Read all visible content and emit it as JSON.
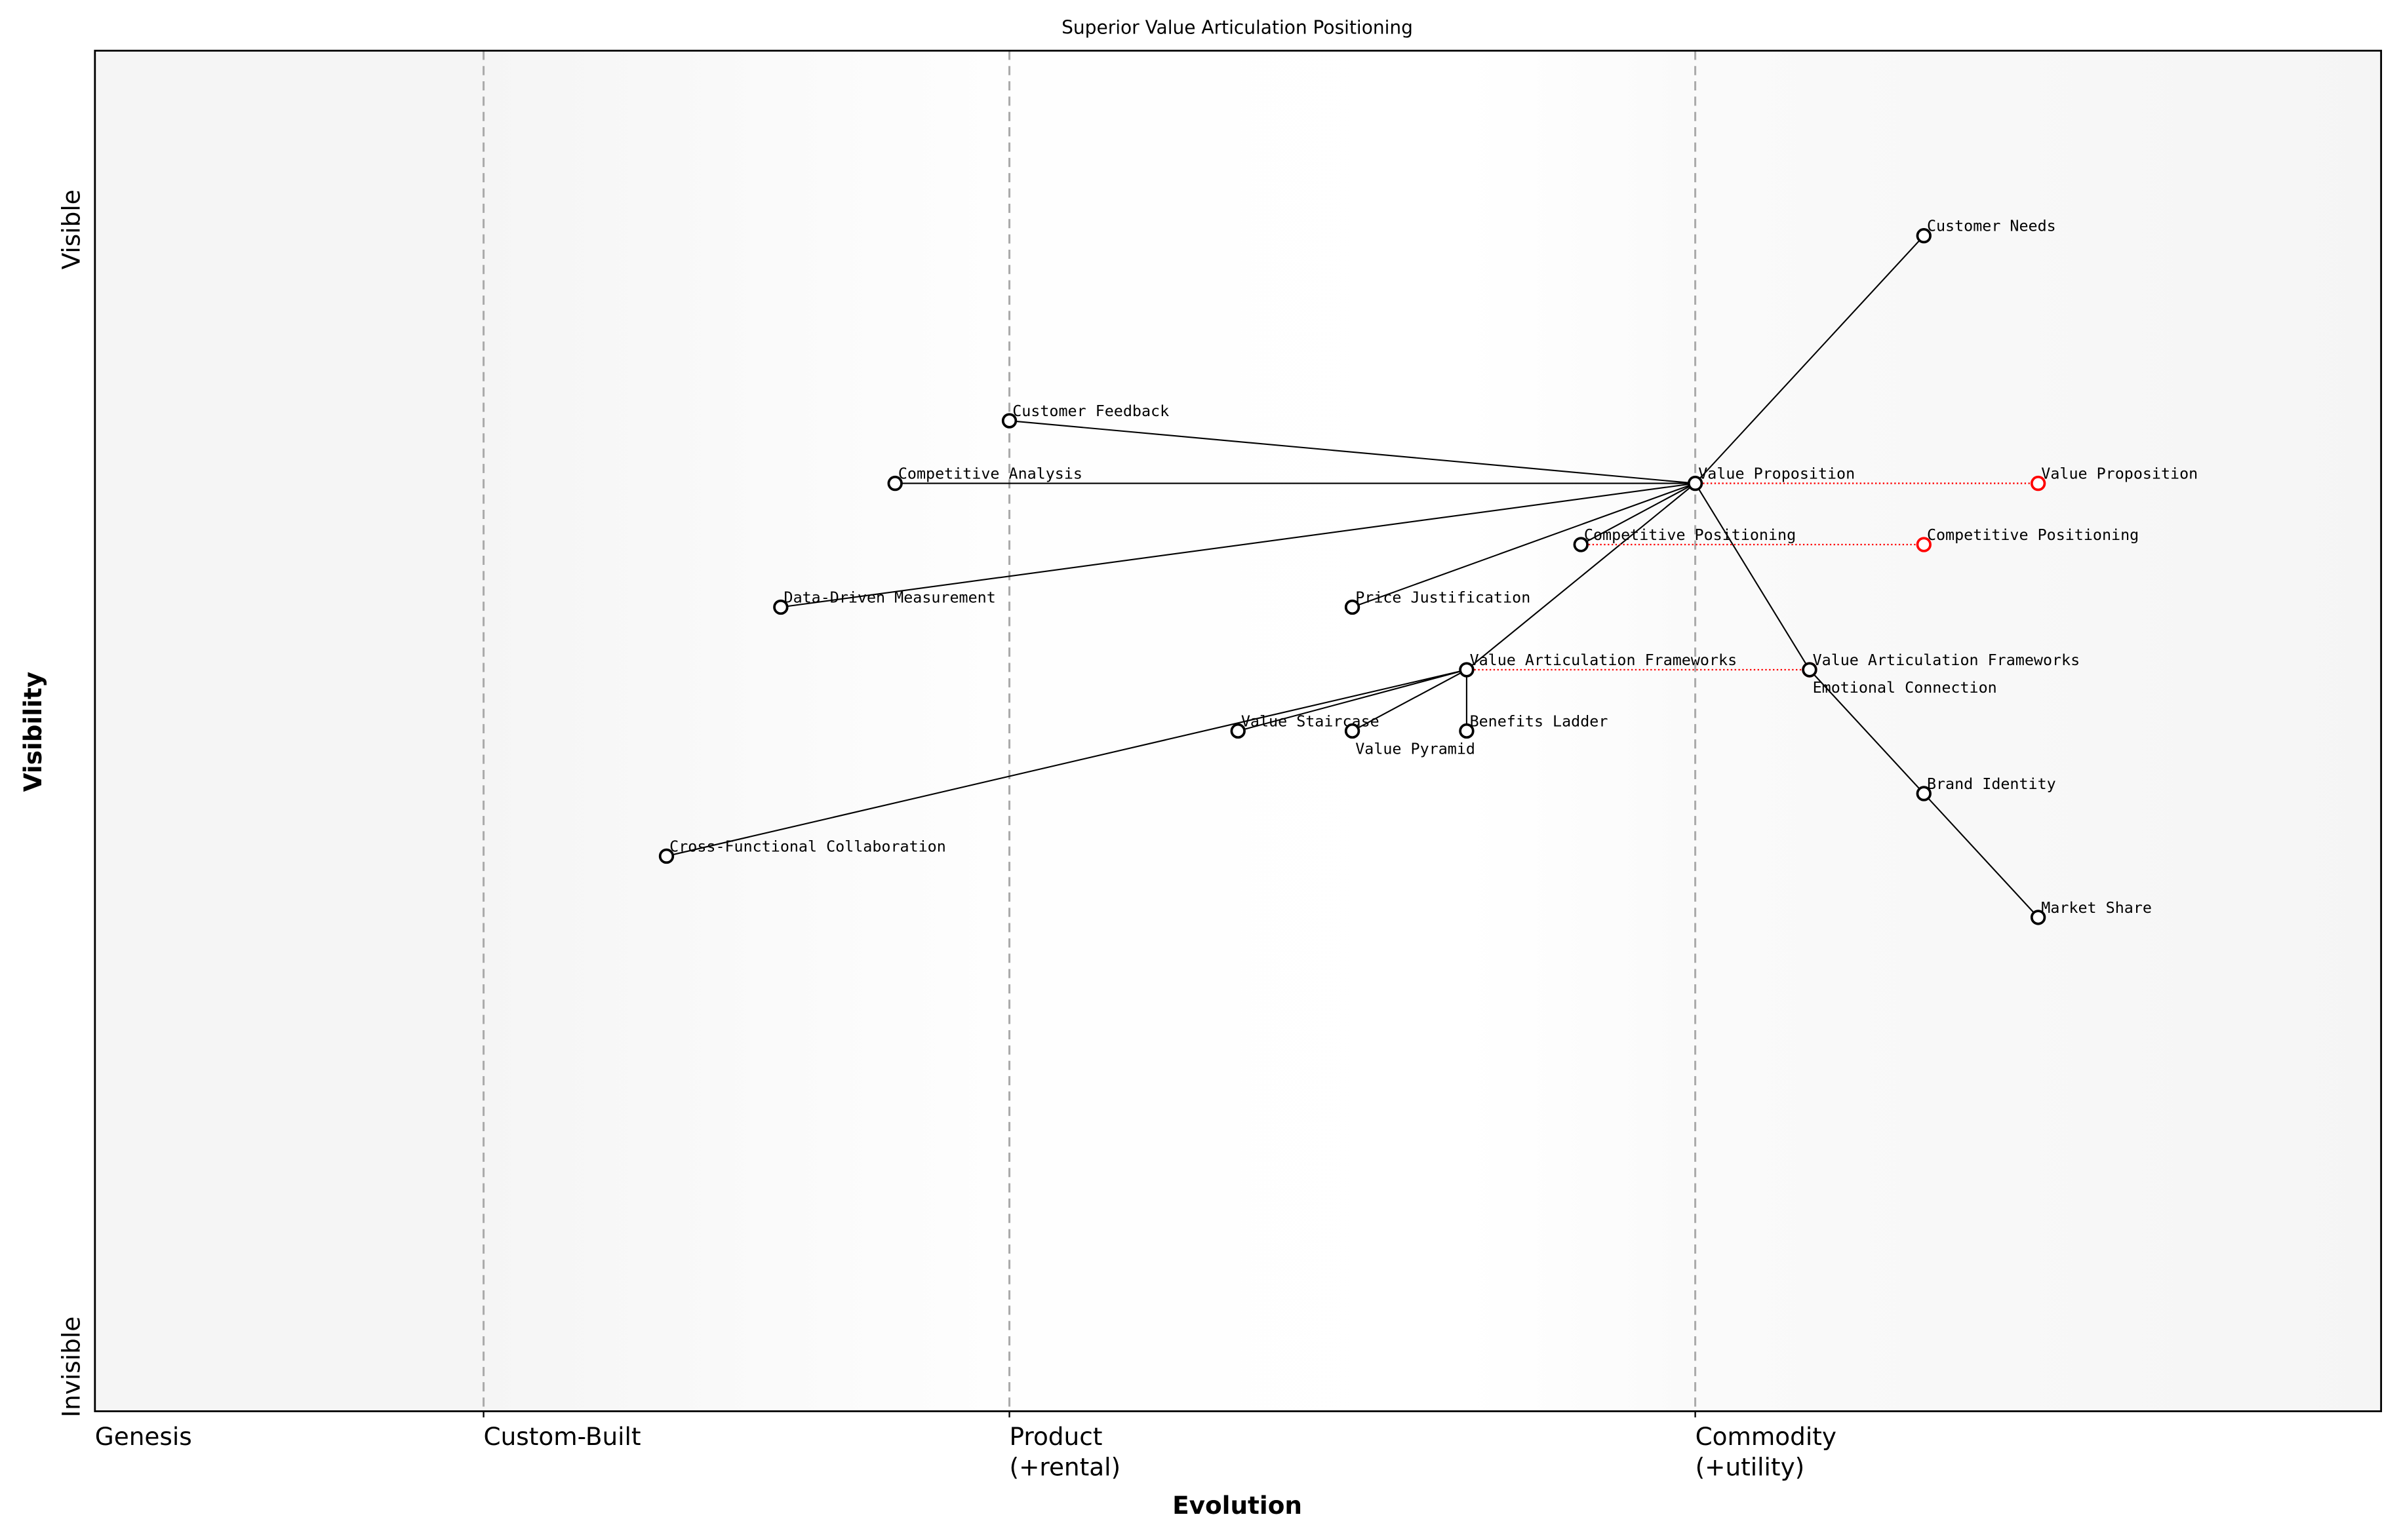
{
  "title": "Superior Value Articulation Positioning",
  "x_axis": {
    "label": "Evolution",
    "stages": [
      {
        "label": [
          "Genesis"
        ],
        "at": 0
      },
      {
        "label": [
          "Custom-Built"
        ],
        "at": 0.17
      },
      {
        "label": [
          "Product",
          "(+rental)"
        ],
        "at": 0.4
      },
      {
        "label": [
          "Commodity",
          "(+utility)"
        ],
        "at": 0.7
      }
    ]
  },
  "y_axis": {
    "label": "Visibility",
    "top": "Visible",
    "bottom": "Invisible"
  },
  "colors": {
    "node": "#000000",
    "evolved": "#ff0000",
    "stage_line": "#aaaaaa",
    "edge_band": "#f5f5f5"
  },
  "components": [
    {
      "name": "Customer Needs",
      "evolution": 0.8,
      "visibility": 0.864
    },
    {
      "name": "Value Proposition",
      "evolution": 0.7,
      "visibility": 0.682
    },
    {
      "name": "Customer Feedback",
      "evolution": 0.4,
      "visibility": 0.728
    },
    {
      "name": "Competitive Analysis",
      "evolution": 0.35,
      "visibility": 0.682
    },
    {
      "name": "Competitive Positioning",
      "evolution": 0.65,
      "visibility": 0.637
    },
    {
      "name": "Data-Driven Measurement",
      "evolution": 0.3,
      "visibility": 0.591
    },
    {
      "name": "Price Justification",
      "evolution": 0.55,
      "visibility": 0.591
    },
    {
      "name": "Value Articulation Frameworks",
      "evolution": 0.6,
      "visibility": 0.545
    },
    {
      "name": "Emotional Connection",
      "evolution": 0.75,
      "visibility": 0.545
    },
    {
      "name": "Value Staircase",
      "evolution": 0.5,
      "visibility": 0.5
    },
    {
      "name": "Value Pyramid",
      "evolution": 0.55,
      "visibility": 0.5
    },
    {
      "name": "Benefits Ladder",
      "evolution": 0.6,
      "visibility": 0.5
    },
    {
      "name": "Brand Identity",
      "evolution": 0.8,
      "visibility": 0.454
    },
    {
      "name": "Cross-Functional Collaboration",
      "evolution": 0.25,
      "visibility": 0.408
    },
    {
      "name": "Market Share",
      "evolution": 0.85,
      "visibility": 0.363
    }
  ],
  "links": [
    [
      "Customer Needs",
      "Value Proposition"
    ],
    [
      "Value Proposition",
      "Customer Feedback"
    ],
    [
      "Value Proposition",
      "Competitive Analysis"
    ],
    [
      "Value Proposition",
      "Data-Driven Measurement"
    ],
    [
      "Value Proposition",
      "Competitive Positioning"
    ],
    [
      "Value Proposition",
      "Price Justification"
    ],
    [
      "Value Proposition",
      "Value Articulation Frameworks"
    ],
    [
      "Value Proposition",
      "Emotional Connection"
    ],
    [
      "Emotional Connection",
      "Brand Identity"
    ],
    [
      "Brand Identity",
      "Market Share"
    ],
    [
      "Value Articulation Frameworks",
      "Value Staircase"
    ],
    [
      "Value Articulation Frameworks",
      "Value Pyramid"
    ],
    [
      "Value Articulation Frameworks",
      "Benefits Ladder"
    ],
    [
      "Value Articulation Frameworks",
      "Cross-Functional Collaboration"
    ]
  ],
  "evolutions": [
    {
      "name": "Value Proposition",
      "to": 0.85
    },
    {
      "name": "Competitive Positioning",
      "to": 0.8
    },
    {
      "name": "Value Articulation Frameworks",
      "to": 0.75
    }
  ]
}
